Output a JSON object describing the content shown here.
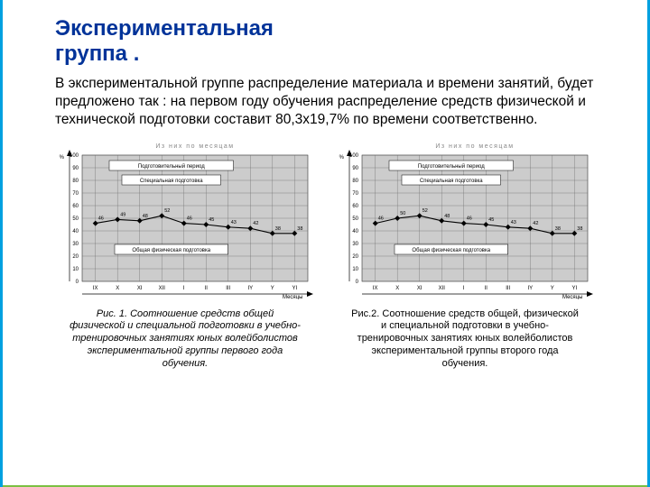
{
  "title_line1": "Экспериментальная",
  "title_line2": "группа .",
  "body_text": "В экспериментальной группе распределение материала и времени занятий, будет предложено так :  на первом году обучения распределение средств физической и технической подготовки составит 80,3х19,7% по времени соответственно.",
  "charts": [
    {
      "type": "line",
      "subtitle": "Из них по месяцам",
      "box1": "Подготовительный период",
      "box2": "Специальная подготовка",
      "box3": "Общая физическая подготовка",
      "y_axis_label": "%",
      "x_axis_label": "Месяцы",
      "y_ticks": [
        0,
        10,
        20,
        30,
        40,
        50,
        60,
        70,
        80,
        90,
        100
      ],
      "x_labels": [
        "IX",
        "X",
        "XI",
        "XII",
        "I",
        "II",
        "III",
        "IY",
        "Y",
        "YI"
      ],
      "values": [
        46,
        49,
        48,
        52,
        46,
        45,
        43,
        42,
        38,
        38
      ],
      "line_color": "#000000",
      "marker_color": "#000000",
      "grid_color": "#666666",
      "background_color": "#cccccc",
      "label_fontsize": 6,
      "title_fontsize": 7,
      "value_fontsize": 5.5,
      "ylim": [
        0,
        100
      ]
    },
    {
      "type": "line",
      "subtitle": "Из них по месяцам",
      "box1": "Подготовительный период",
      "box2": "Специальная подготовка",
      "box3": "Общая физическая подготовка",
      "y_axis_label": "%",
      "x_axis_label": "Месяцы",
      "y_ticks": [
        0,
        10,
        20,
        30,
        40,
        50,
        60,
        70,
        80,
        90,
        100
      ],
      "x_labels": [
        "IX",
        "X",
        "XI",
        "XII",
        "I",
        "II",
        "III",
        "IY",
        "Y",
        "YI"
      ],
      "values": [
        46,
        50,
        52,
        48,
        46,
        45,
        43,
        42,
        38,
        38
      ],
      "line_color": "#000000",
      "marker_color": "#000000",
      "grid_color": "#666666",
      "background_color": "#cccccc",
      "label_fontsize": 6,
      "title_fontsize": 7,
      "value_fontsize": 5.5,
      "ylim": [
        0,
        100
      ]
    }
  ],
  "captions": [
    "Рис. 1. Соотношение средств общей физической и специальной подготовки в учебно-тренировочных занятиях юных волейболистов экспериментальной группы первого года обучения.",
    "Рис.2. Соотношение средств общей, физической и специальной подготовки в учебно-тренировочных занятиях юных волейболистов экспериментальной группы второго года обучения."
  ]
}
